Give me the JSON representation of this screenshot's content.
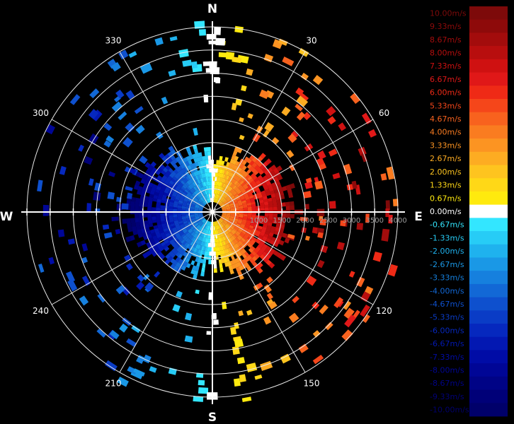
{
  "compass": {
    "north": "N",
    "east": "E",
    "south": "S",
    "west": "W"
  },
  "azimuth_labels": [
    {
      "deg": 30,
      "text": "30"
    },
    {
      "deg": 60,
      "text": "60"
    },
    {
      "deg": 120,
      "text": "120"
    },
    {
      "deg": 150,
      "text": "150"
    },
    {
      "deg": 210,
      "text": "210"
    },
    {
      "deg": 240,
      "text": "240"
    },
    {
      "deg": 300,
      "text": "300"
    },
    {
      "deg": 330,
      "text": "330"
    }
  ],
  "range_labels": [
    {
      "range": 1000,
      "text": "1000"
    },
    {
      "range": 1500,
      "text": "1500"
    },
    {
      "range": 2000,
      "text": "2000"
    },
    {
      "range": 2500,
      "text": "2500"
    },
    {
      "range": 3000,
      "text": "3000"
    },
    {
      "range": 3500,
      "text": "3500"
    },
    {
      "range": 4000,
      "text": "4000"
    }
  ],
  "radar": {
    "max_range": 4000,
    "range_rings": [
      500,
      1000,
      1500,
      2000,
      2500,
      3000,
      3500,
      4000
    ]
  },
  "colorbar": {
    "entries": [
      {
        "label": "10.00m/s",
        "color": "#7d0a0a"
      },
      {
        "label": "9.33m/s",
        "color": "#8e0a0a"
      },
      {
        "label": "8.67m/s",
        "color": "#a30c0c"
      },
      {
        "label": "8.00m/s",
        "color": "#b80e0e"
      },
      {
        "label": "7.33m/s",
        "color": "#cf1111"
      },
      {
        "label": "6.67m/s",
        "color": "#e01818"
      },
      {
        "label": "6.00m/s",
        "color": "#ef2a16"
      },
      {
        "label": "5.33m/s",
        "color": "#f5461a"
      },
      {
        "label": "4.67m/s",
        "color": "#f8621e"
      },
      {
        "label": "4.00m/s",
        "color": "#fa7c20"
      },
      {
        "label": "3.33m/s",
        "color": "#fc9422"
      },
      {
        "label": "2.67m/s",
        "color": "#fdac22"
      },
      {
        "label": "2.00m/s",
        "color": "#fec41f"
      },
      {
        "label": "1.33m/s",
        "color": "#ffd817"
      },
      {
        "label": "0.67m/s",
        "color": "#ffea0e"
      },
      {
        "label": "0.00m/s",
        "color": "#ffffff"
      },
      {
        "label": "-0.67m/s",
        "color": "#33e6ff"
      },
      {
        "label": "-1.33m/s",
        "color": "#27ccf6"
      },
      {
        "label": "-2.00m/s",
        "color": "#1fb2ee"
      },
      {
        "label": "-2.67m/s",
        "color": "#1a98e6"
      },
      {
        "label": "-3.33m/s",
        "color": "#1680de"
      },
      {
        "label": "-4.00m/s",
        "color": "#1268d6"
      },
      {
        "label": "-4.67m/s",
        "color": "#0e50ce"
      },
      {
        "label": "-5.33m/s",
        "color": "#0a3cc6"
      },
      {
        "label": "-6.00m/s",
        "color": "#0628be"
      },
      {
        "label": "-6.67m/s",
        "color": "#0318b2"
      },
      {
        "label": "-7.33m/s",
        "color": "#000ca6"
      },
      {
        "label": "-8.00m/s",
        "color": "#000696"
      },
      {
        "label": "-8.67m/s",
        "color": "#000386"
      },
      {
        "label": "-9.33m/s",
        "color": "#000078"
      },
      {
        "label": "-10.00m/s",
        "color": "#00006a"
      }
    ]
  }
}
